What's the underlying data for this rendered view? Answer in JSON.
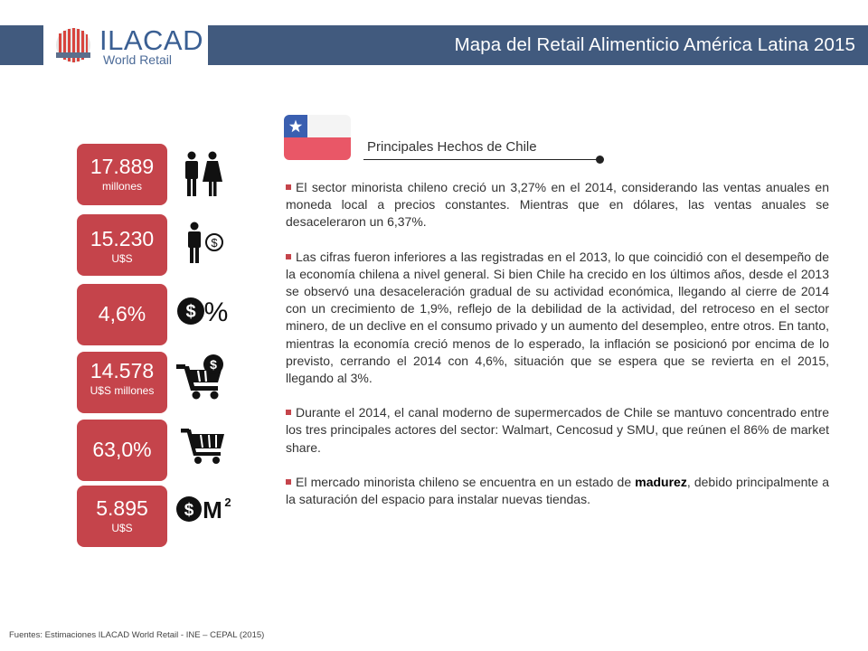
{
  "header": {
    "brand_name": "ILACAD",
    "brand_sub": "World Retail",
    "title": "Mapa del Retail Alimenticio América Latina 2015"
  },
  "colors": {
    "header_bar": "#415a7e",
    "stat_box": "#c5444b",
    "flag_red": "#e95767",
    "flag_blue": "#3a5fb0"
  },
  "stats": [
    {
      "value": "17.889",
      "unit": "millones",
      "icon": "man-woman-icon"
    },
    {
      "value": "15.230",
      "unit": "U$S",
      "icon": "person-money-icon"
    },
    {
      "value": "4,6%",
      "unit": "",
      "icon": "dollar-percent-icon"
    },
    {
      "value": "14.578",
      "unit": "U$S millones",
      "icon": "cart-dollar-icon"
    },
    {
      "value": "63,0%",
      "unit": "",
      "icon": "cart-icon"
    },
    {
      "value": "5.895",
      "unit": "U$S",
      "icon": "dollar-m2-icon"
    }
  ],
  "section": {
    "title": "Principales Hechos de Chile"
  },
  "bullets": [
    {
      "text": "El sector minorista chileno creció un 3,27% en el 2014, considerando las ventas anuales en moneda local a precios constantes. Mientras que en dólares, las ventas anuales se desaceleraron un 6,37%."
    },
    {
      "text": "Las cifras fueron inferiores a las registradas en el 2013, lo que coincidió con el desempeño de la economía chilena a nivel general. Si bien Chile ha crecido en los últimos años, desde el 2013 se observó una desaceleración gradual de su actividad económica, llegando al cierre de 2014 con un crecimiento de 1,9%, reflejo de la debilidad de la actividad, del retroceso en el sector minero, de un declive en el consumo privado y un aumento del desempleo, entre otros. En tanto, mientras la economía creció menos de lo esperado, la inflación se posicionó por encima de lo previsto, cerrando el 2014 con 4,6%, situación que se espera que se revierta en el 2015, llegando al 3%."
    },
    {
      "text": "Durante el 2014, el canal moderno de supermercados de Chile se mantuvo concentrado entre los tres principales actores del sector: Walmart, Cencosud y SMU, que reúnen el 86% de market share."
    },
    {
      "text_before": "El mercado minorista chileno se encuentra en un estado de ",
      "text_bold": "madurez",
      "text_after": ", debido principalmente a la saturación del espacio para instalar nuevas tiendas."
    }
  ],
  "footer": {
    "text": "Fuentes: Estimaciones ILACAD World Retail - INE – CEPAL (2015)"
  }
}
